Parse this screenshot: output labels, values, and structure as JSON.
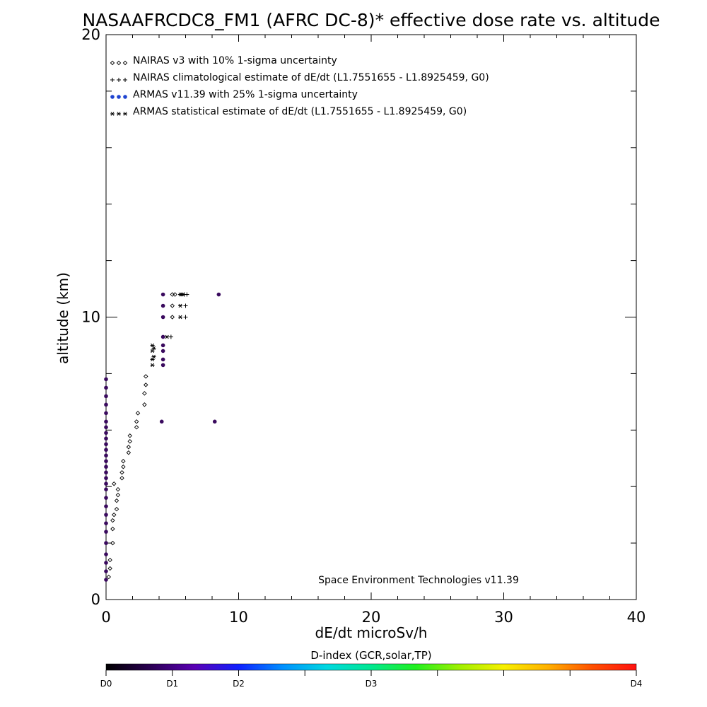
{
  "chart_data": {
    "type": "scatter",
    "title": "NASAAFRCDC8_FM1 (AFRC DC-8)* effective dose rate vs. altitude",
    "xlabel": "dE/dt microSv/h",
    "ylabel": "altitude (km)",
    "xlim": [
      0,
      40
    ],
    "ylim": [
      0,
      20
    ],
    "x_ticks": [
      "0",
      "10",
      "20",
      "30",
      "40"
    ],
    "y_ticks": [
      "0",
      "10",
      "20"
    ],
    "legend_position": "top-left",
    "credit": "Space Environment Technologies v11.39",
    "legend": [
      {
        "symbol": "◇◇◇",
        "label": "NAIRAS v3 with 10% 1-sigma uncertainty"
      },
      {
        "symbol": "+++",
        "label": "NAIRAS climatological estimate of dE/dt (L1.7551655 - L1.8925459, G0)"
      },
      {
        "symbol": "●●●",
        "label": "ARMAS v11.39 with 25% 1-sigma uncertainty"
      },
      {
        "symbol": "***",
        "label": "ARMAS statistical estimate of dE/dt (L1.7551655 - L1.8925459, G0)"
      }
    ],
    "colors": {
      "nairas_v3": "#000000",
      "nairas_clim": "#000000",
      "armas_v11_39": "#3a0a5e",
      "armas_legend": "#1f44d0",
      "armas_stat": "#000000"
    },
    "series": [
      {
        "name": "NAIRAS v3 with 10% 1-sigma uncertainty",
        "marker": "diamond",
        "points": [
          [
            0.2,
            0.8
          ],
          [
            0.3,
            1.1
          ],
          [
            0.3,
            1.4
          ],
          [
            0.5,
            2.0
          ],
          [
            0.5,
            2.5
          ],
          [
            0.5,
            2.8
          ],
          [
            0.6,
            3.0
          ],
          [
            0.8,
            3.2
          ],
          [
            0.8,
            3.5
          ],
          [
            0.9,
            3.7
          ],
          [
            0.9,
            3.9
          ],
          [
            0.6,
            4.1
          ],
          [
            1.2,
            4.3
          ],
          [
            1.2,
            4.5
          ],
          [
            1.3,
            4.7
          ],
          [
            1.3,
            4.9
          ],
          [
            1.7,
            5.2
          ],
          [
            1.7,
            5.4
          ],
          [
            1.8,
            5.6
          ],
          [
            1.8,
            5.8
          ],
          [
            2.3,
            6.1
          ],
          [
            2.3,
            6.3
          ],
          [
            2.4,
            6.6
          ],
          [
            2.9,
            6.9
          ],
          [
            2.9,
            7.3
          ],
          [
            3.0,
            7.6
          ],
          [
            3.0,
            7.9
          ],
          [
            5.0,
            10.0
          ],
          [
            5.0,
            10.4
          ],
          [
            5.0,
            10.8
          ],
          [
            5.2,
            10.8
          ]
        ]
      },
      {
        "name": "NAIRAS climatological estimate of dE/dt (L1.7551655 - L1.8925459, G0)",
        "marker": "plus",
        "points": [
          [
            4.9,
            9.3
          ],
          [
            6.0,
            10.0
          ],
          [
            6.0,
            10.4
          ],
          [
            5.9,
            10.8
          ],
          [
            6.1,
            10.8
          ]
        ]
      },
      {
        "name": "ARMAS v11.39 with 25% 1-sigma uncertainty",
        "marker": "dot",
        "points": [
          [
            0.0,
            0.7
          ],
          [
            0.0,
            1.0
          ],
          [
            0.0,
            1.3
          ],
          [
            0.0,
            1.6
          ],
          [
            0.0,
            2.0
          ],
          [
            0.0,
            2.4
          ],
          [
            0.0,
            2.7
          ],
          [
            0.0,
            3.0
          ],
          [
            0.0,
            3.3
          ],
          [
            0.0,
            3.6
          ],
          [
            0.0,
            3.9
          ],
          [
            0.0,
            4.1
          ],
          [
            0.0,
            4.3
          ],
          [
            0.0,
            4.5
          ],
          [
            0.0,
            4.7
          ],
          [
            0.0,
            4.9
          ],
          [
            0.0,
            5.1
          ],
          [
            0.0,
            5.3
          ],
          [
            0.0,
            5.5
          ],
          [
            0.0,
            5.7
          ],
          [
            0.0,
            5.9
          ],
          [
            0.0,
            6.1
          ],
          [
            0.0,
            6.3
          ],
          [
            0.0,
            6.6
          ],
          [
            0.0,
            6.9
          ],
          [
            0.0,
            7.2
          ],
          [
            0.0,
            7.5
          ],
          [
            0.0,
            7.8
          ],
          [
            4.2,
            6.3
          ],
          [
            8.2,
            6.3
          ],
          [
            4.3,
            8.3
          ],
          [
            4.3,
            8.5
          ],
          [
            4.3,
            8.8
          ],
          [
            4.3,
            9.0
          ],
          [
            4.3,
            9.3
          ],
          [
            4.3,
            10.0
          ],
          [
            4.3,
            10.4
          ],
          [
            4.3,
            10.8
          ],
          [
            8.5,
            10.8
          ]
        ]
      },
      {
        "name": "ARMAS statistical estimate of dE/dt (L1.7551655 - L1.8925459, G0)",
        "marker": "asterisk",
        "points": [
          [
            3.5,
            8.3
          ],
          [
            3.5,
            8.5
          ],
          [
            3.5,
            8.8
          ],
          [
            3.5,
            9.0
          ],
          [
            3.6,
            8.6
          ],
          [
            3.6,
            8.9
          ],
          [
            4.6,
            9.3
          ],
          [
            5.6,
            10.0
          ],
          [
            5.6,
            10.4
          ],
          [
            5.6,
            10.8
          ],
          [
            5.7,
            10.8
          ],
          [
            5.8,
            10.8
          ]
        ]
      }
    ],
    "colorbar": {
      "title": "D-index (GCR,solar,TP)",
      "labels": [
        "D0",
        "D1",
        "D2",
        "D3",
        "D4"
      ],
      "label_positions": [
        0,
        0.125,
        0.25,
        0.5,
        1.0
      ],
      "colors": [
        "#000000",
        "#2a0052",
        "#5a00b4",
        "#0f20ff",
        "#0090ff",
        "#00d8e0",
        "#00e890",
        "#20f020",
        "#a0f000",
        "#f8f000",
        "#ffb000",
        "#ff5000",
        "#ff1010"
      ]
    }
  }
}
